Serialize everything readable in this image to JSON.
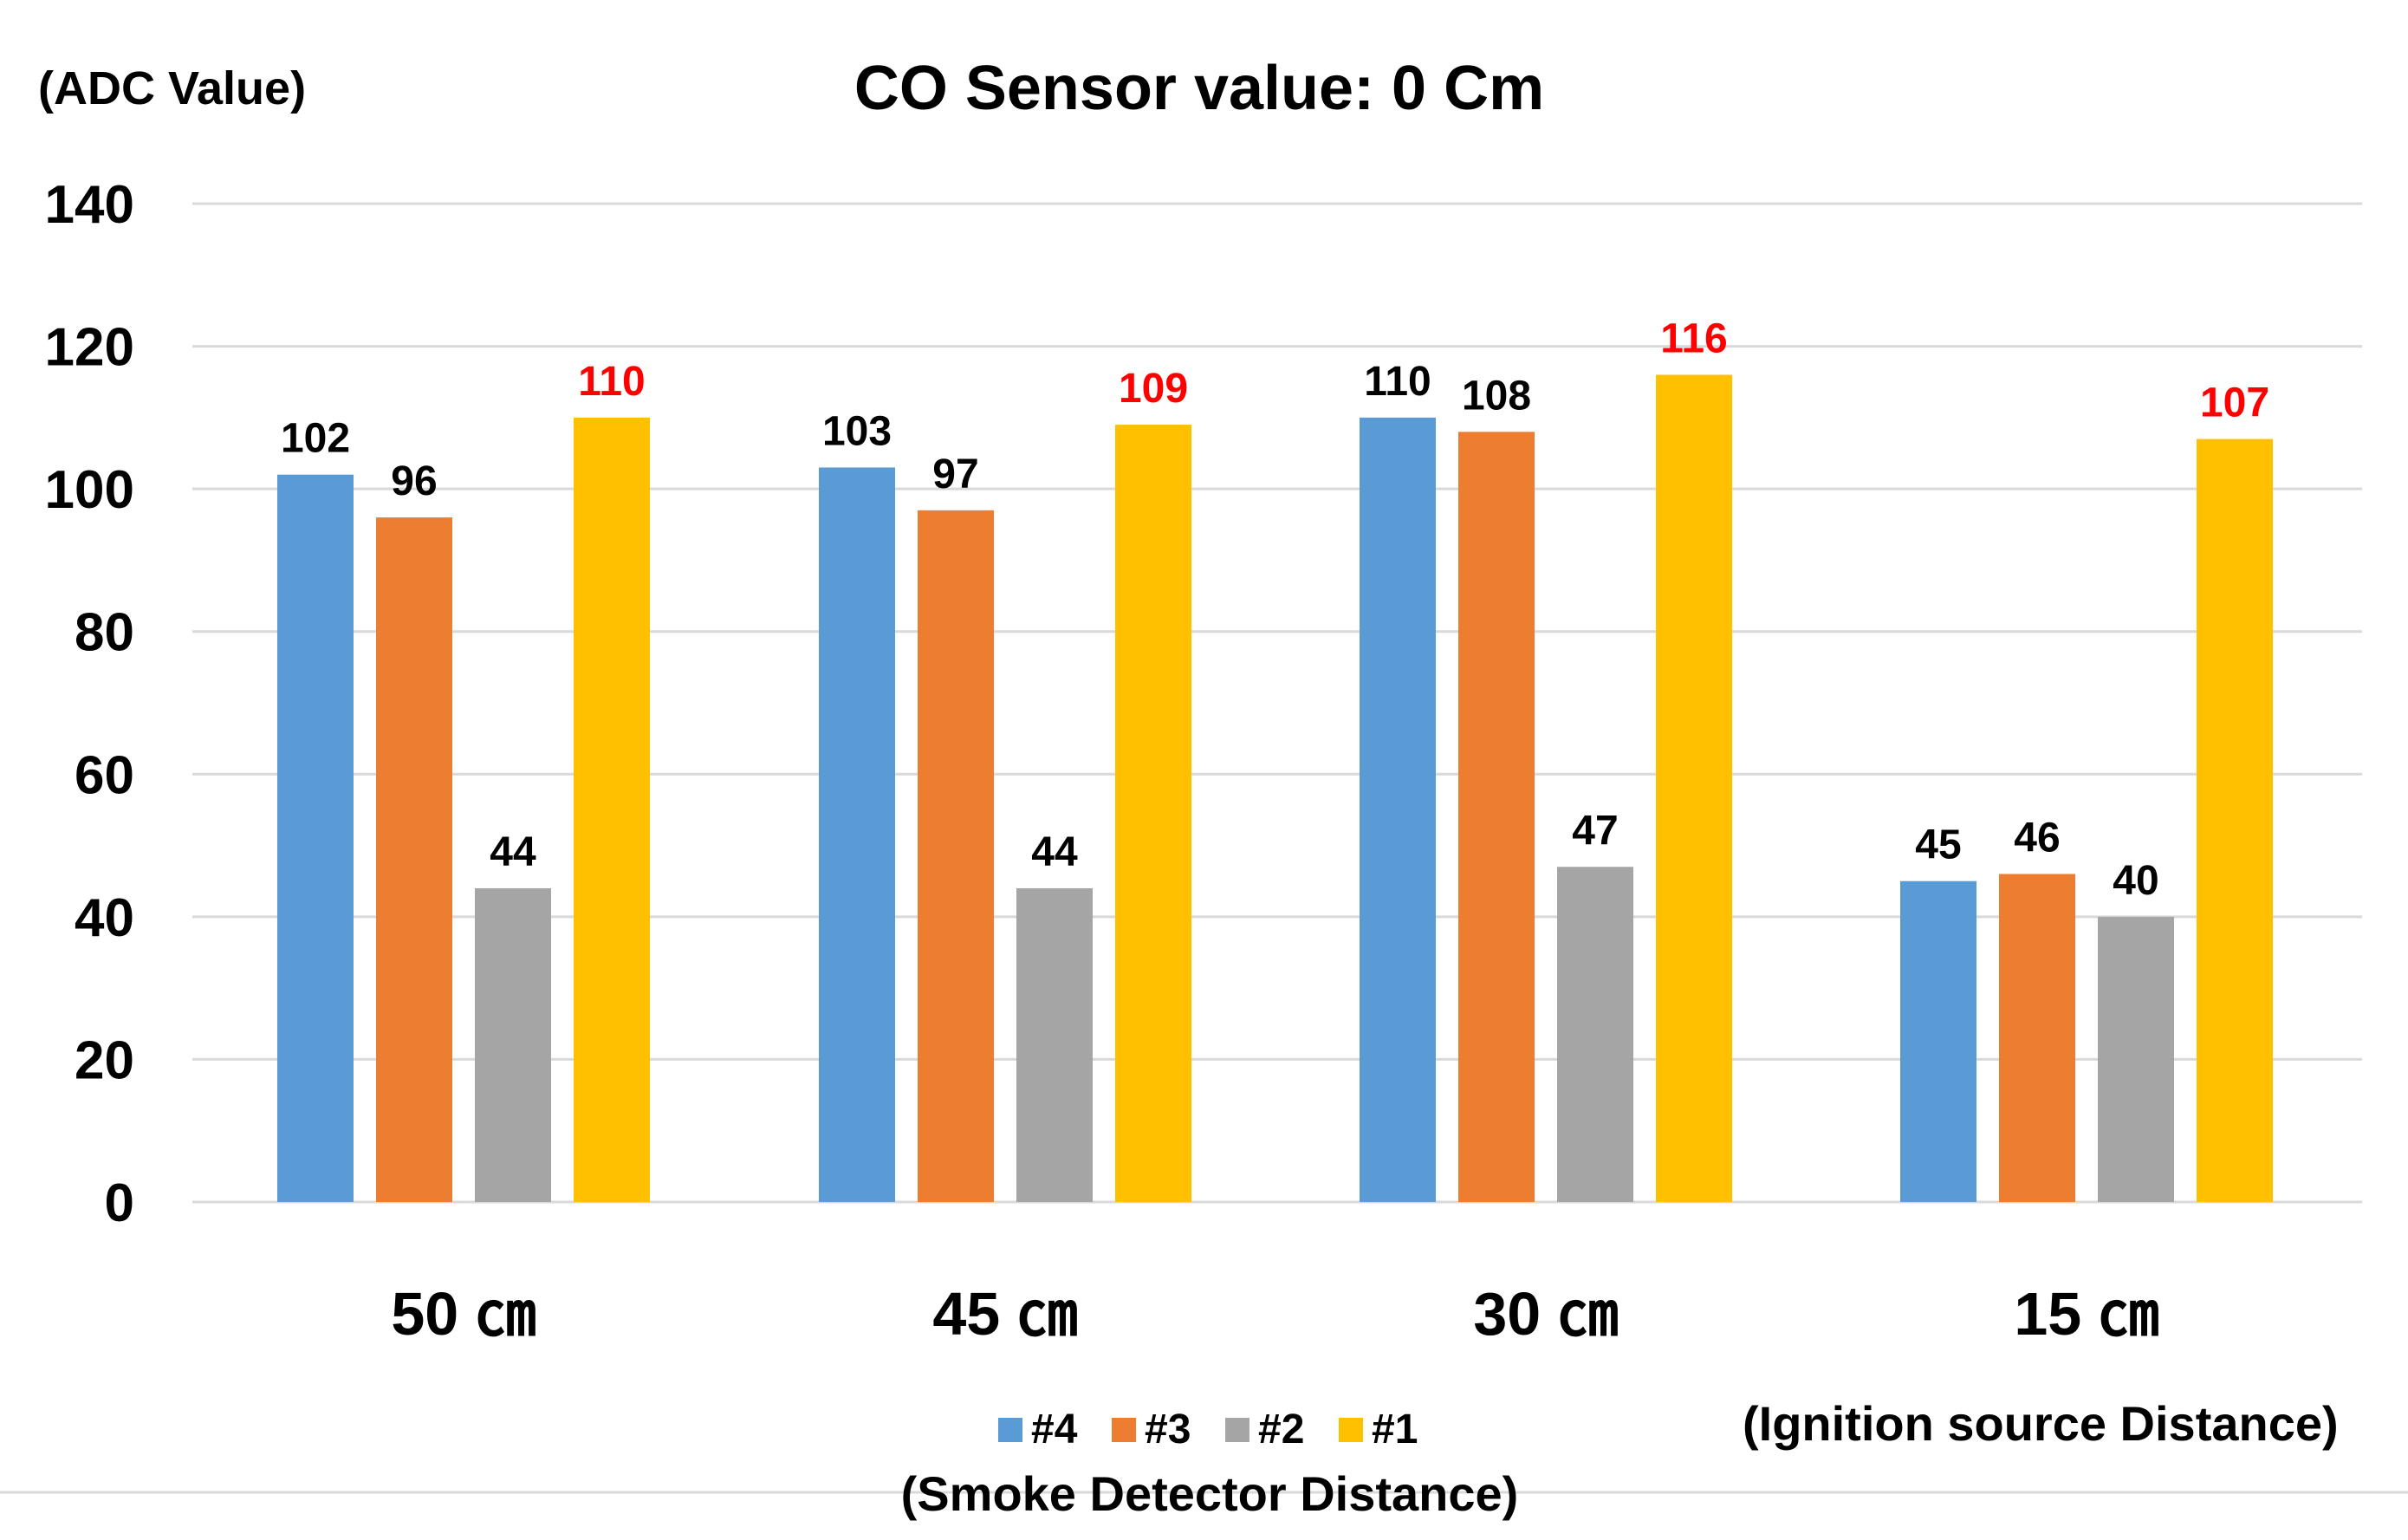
{
  "chart_data": {
    "type": "bar",
    "title": "CO Sensor value: 0 Cm",
    "ylabel": "(ADC Value)",
    "xlabel": "(Ignition source Distance)",
    "legend_title": "(Smoke Detector Distance)",
    "legend_position": "bottom",
    "grid": true,
    "ylim": [
      0,
      140
    ],
    "yticks": [
      0,
      20,
      40,
      60,
      80,
      100,
      120,
      140
    ],
    "categories": [
      "50 ㎝",
      "45 ㎝",
      "30 ㎝",
      "15 ㎝"
    ],
    "series": [
      {
        "name": "#4",
        "color": "#5B9BD5",
        "label_color": "#000000",
        "values": [
          102,
          103,
          110,
          45
        ]
      },
      {
        "name": "#3",
        "color": "#ED7D31",
        "label_color": "#000000",
        "values": [
          96,
          97,
          108,
          46
        ]
      },
      {
        "name": "#2",
        "color": "#A5A5A5",
        "label_color": "#000000",
        "values": [
          44,
          44,
          47,
          40
        ]
      },
      {
        "name": "#1",
        "color": "#FFC000",
        "label_color": "#FF0000",
        "values": [
          110,
          109,
          116,
          107
        ]
      }
    ]
  }
}
